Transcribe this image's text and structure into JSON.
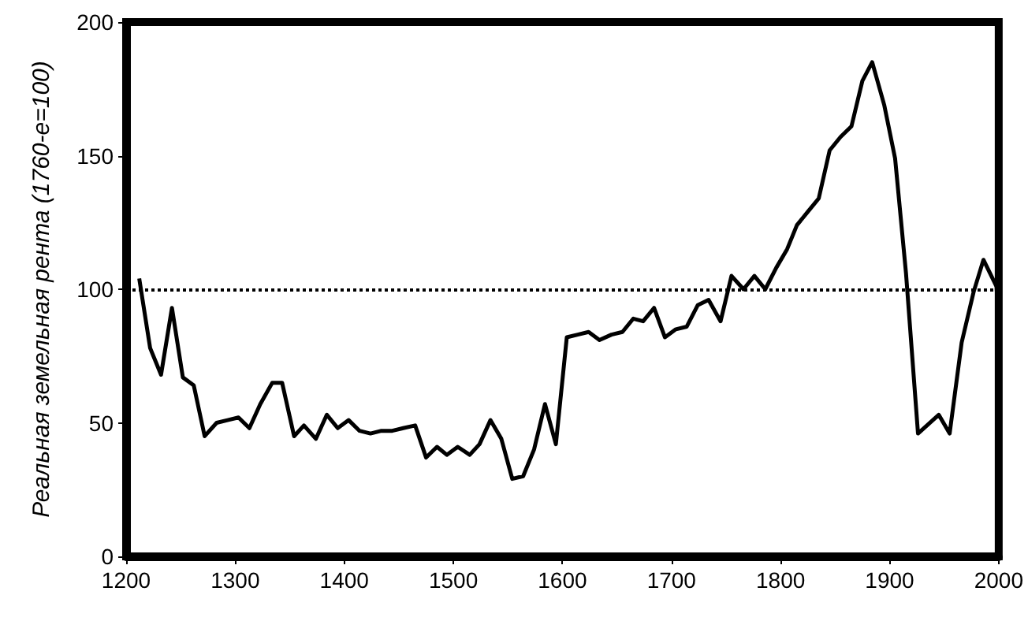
{
  "chart_data": {
    "type": "line",
    "ylabel": "Реальная земельная рента (1760-е=100)",
    "x": [
      1212,
      1222,
      1232,
      1242,
      1252,
      1262,
      1272,
      1283,
      1293,
      1303,
      1313,
      1323,
      1334,
      1343,
      1354,
      1363,
      1374,
      1384,
      1394,
      1404,
      1414,
      1424,
      1434,
      1444,
      1454,
      1465,
      1475,
      1485,
      1494,
      1504,
      1515,
      1524,
      1534,
      1544,
      1554,
      1564,
      1574,
      1584,
      1594,
      1604,
      1614,
      1624,
      1634,
      1645,
      1655,
      1665,
      1674,
      1684,
      1694,
      1704,
      1714,
      1724,
      1734,
      1745,
      1755,
      1766,
      1776,
      1786,
      1796,
      1806,
      1815,
      1825,
      1835,
      1845,
      1855,
      1865,
      1875,
      1884,
      1895,
      1905,
      1915,
      1926,
      1945,
      1955,
      1966,
      1977,
      1986,
      1998,
      2000
    ],
    "series": [
      {
        "color": "#000000",
        "values": [
          104,
          78,
          68,
          93,
          67,
          64,
          45,
          50,
          51,
          52,
          48,
          57,
          65,
          65,
          45,
          49,
          44,
          53,
          48,
          51,
          47,
          46,
          47,
          47,
          48,
          49,
          37,
          41,
          38,
          41,
          38,
          42,
          51,
          44,
          29,
          30,
          40,
          57,
          42,
          82,
          83,
          84,
          81,
          83,
          84,
          89,
          88,
          93,
          82,
          85,
          86,
          94,
          96,
          88,
          105,
          100,
          105,
          100,
          108,
          115,
          124,
          129,
          134,
          152,
          157,
          161,
          178,
          185,
          169,
          149,
          106,
          46,
          53,
          46,
          80,
          99,
          111,
          101,
          88
        ]
      }
    ],
    "xlim": [
      1200,
      2000
    ],
    "xticks": [
      1200,
      1300,
      1400,
      1500,
      1600,
      1700,
      1800,
      1900,
      2000
    ],
    "ylim": [
      0,
      200
    ],
    "yticks": [
      0,
      50,
      100,
      150,
      200
    ],
    "grid": false,
    "marker": "none",
    "line_style": "solid",
    "ref_lines": [
      {
        "axis": "y",
        "value": 100,
        "line_style": "dotted",
        "color": "#000000"
      }
    ]
  }
}
